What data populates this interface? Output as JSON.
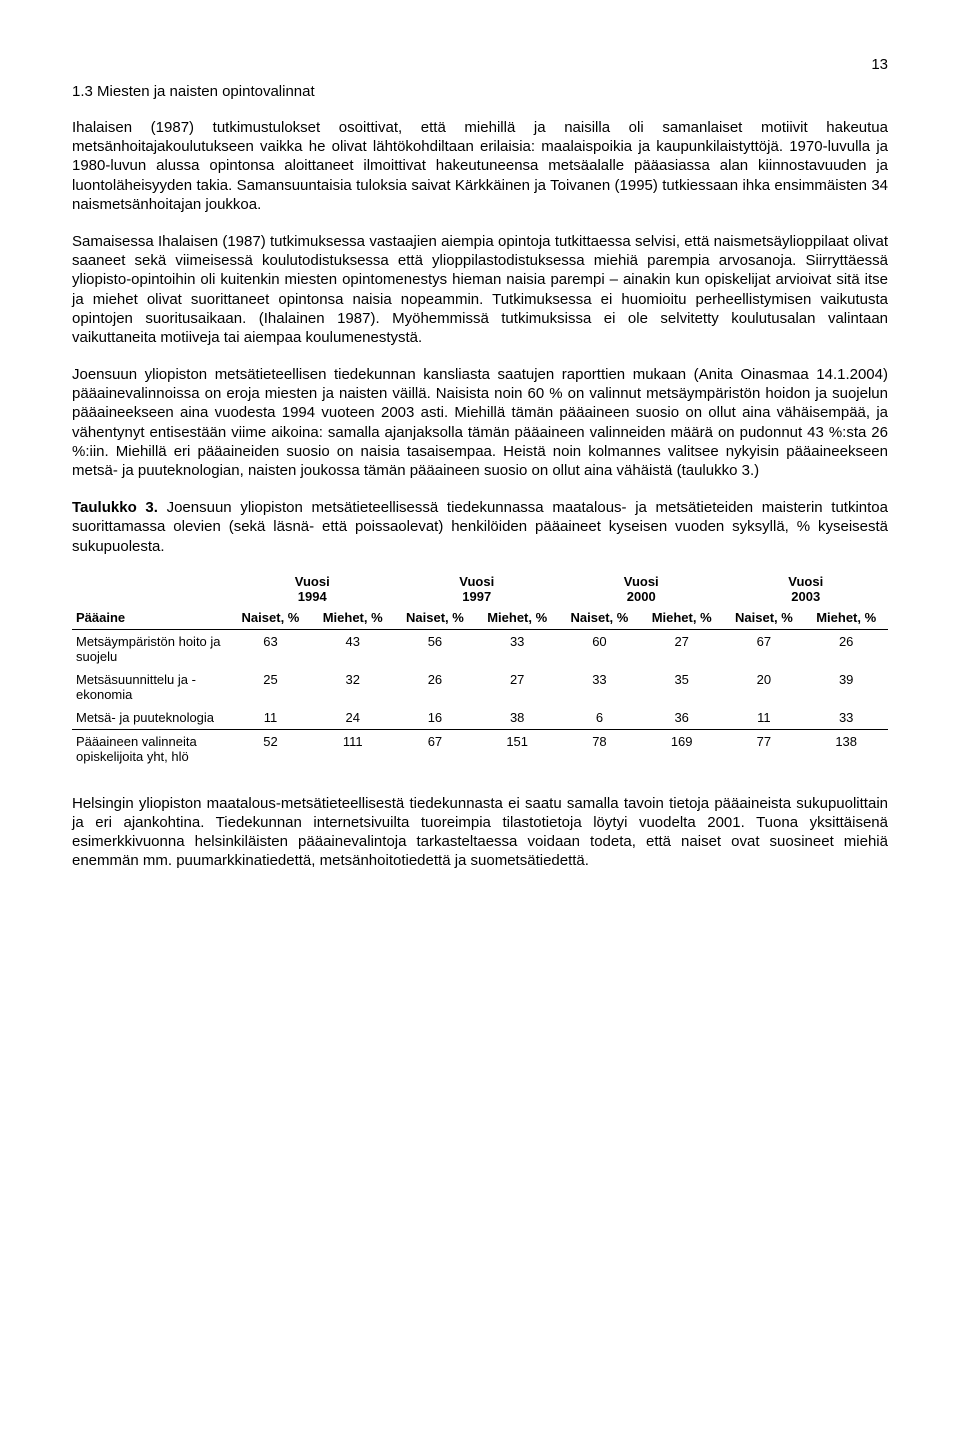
{
  "page_number": "13",
  "heading": "1.3 Miesten ja naisten opintovalinnat",
  "paragraphs": {
    "p1": "Ihalaisen (1987) tutkimustulokset osoittivat, että miehillä ja naisilla oli samanlaiset motiivit hakeutua metsänhoitajakoulutukseen vaikka he olivat lähtökohdiltaan erilaisia: maalaispoikia ja kaupunkilaistyttöjä. 1970-luvulla ja 1980-luvun alussa opintonsa aloittaneet ilmoittivat hakeutuneensa metsäalalle pääasiassa alan kiinnostavuuden ja luontoläheisyyden takia. Samansuuntaisia tuloksia saivat Kärkkäinen ja Toivanen (1995) tutkiessaan ihka ensimmäisten 34 naismetsänhoitajan joukkoa.",
    "p2": "Samaisessa Ihalaisen (1987) tutkimuksessa vastaajien aiempia opintoja tutkittaessa selvisi, että naismetsäylioppilaat olivat saaneet sekä viimeisessä koulutodistuksessa että ylioppilastodistuksessa miehiä parempia arvosanoja. Siirryttäessä yliopisto-opintoihin oli kuitenkin miesten opintomenestys hieman naisia parempi – ainakin kun opiskelijat arvioivat sitä itse ja miehet olivat suorittaneet opintonsa naisia nopeammin. Tutkimuksessa ei huomioitu perheellistymisen vaikutusta opintojen suoritusaikaan. (Ihalainen 1987). Myöhemmissä tutkimuksissa ei ole selvitetty koulutusalan valintaan vaikuttaneita motiiveja tai aiempaa koulumenestystä.",
    "p3": "Joensuun yliopiston metsätieteellisen tiedekunnan kansliasta saatujen raporttien mukaan (Anita Oinasmaa 14.1.2004) pääainevalinnoissa on eroja miesten ja naisten väillä. Naisista noin 60 % on valinnut metsäympäristön hoidon ja suojelun pääaineekseen aina vuodesta 1994 vuoteen 2003 asti. Miehillä tämän pääaineen suosio on ollut aina vähäisempää, ja vähentynyt entisestään viime aikoina: samalla ajanjaksolla tämän pääaineen valinneiden määrä on pudonnut 43 %:sta 26 %:iin. Miehillä eri pääaineiden suosio on naisia tasaisempaa. Heistä noin kolmannes valitsee nykyisin pääaineekseen metsä- ja puuteknologian, naisten joukossa tämän pääaineen suosio on ollut aina vähäistä (taulukko 3.)",
    "p4": "Helsingin yliopiston maatalous-metsätieteellisestä tiedekunnasta ei saatu samalla tavoin tietoja pääaineista sukupuolittain ja eri ajankohtina. Tiedekunnan internetsivuilta tuoreimpia tilastotietoja löytyi vuodelta 2001. Tuona yksittäisenä esimerkkivuonna helsinkiläisten pääainevalintoja tarkasteltaessa voidaan todeta, että naiset ovat suosineet miehiä enemmän mm. puumarkkinatiedettä, metsänhoitotiedettä ja suometsätiedettä."
  },
  "table_caption_bold": "Taulukko 3.",
  "table_caption_rest": " Joensuun yliopiston metsätieteellisessä tiedekunnassa maatalous- ja metsätieteiden maisterin tutkintoa suorittamassa olevien (sekä läsnä- että poissaolevat) henkilöiden pääaineet kyseisen vuoden syksyllä, % kyseisestä sukupuolesta.",
  "table": {
    "year_label": "Vuosi",
    "years": [
      "1994",
      "1997",
      "2000",
      "2003"
    ],
    "col_subject": "Pääaine",
    "col_female": "Naiset, %",
    "col_male": "Miehet, %",
    "rows": [
      {
        "label": "Metsäympäristön hoito ja suojelu",
        "values": [
          "63",
          "43",
          "56",
          "33",
          "60",
          "27",
          "67",
          "26"
        ]
      },
      {
        "label": "Metsäsuunnittelu ja -ekonomia",
        "values": [
          "25",
          "32",
          "26",
          "27",
          "33",
          "35",
          "20",
          "39"
        ]
      },
      {
        "label": "Metsä- ja puuteknologia",
        "values": [
          "11",
          "24",
          "16",
          "38",
          "6",
          "36",
          "11",
          "33"
        ]
      }
    ],
    "total": {
      "label": "Pääaineen valinneita opiskelijoita yht, hlö",
      "values": [
        "52",
        "111",
        "67",
        "151",
        "78",
        "169",
        "77",
        "138"
      ]
    }
  }
}
